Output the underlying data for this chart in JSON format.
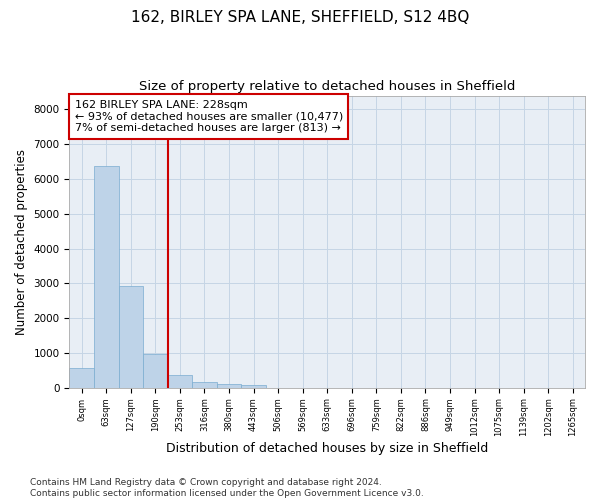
{
  "title1": "162, BIRLEY SPA LANE, SHEFFIELD, S12 4BQ",
  "title2": "Size of property relative to detached houses in Sheffield",
  "xlabel": "Distribution of detached houses by size in Sheffield",
  "ylabel": "Number of detached properties",
  "footnote": "Contains HM Land Registry data © Crown copyright and database right 2024.\nContains public sector information licensed under the Open Government Licence v3.0.",
  "bar_labels": [
    "0sqm",
    "63sqm",
    "127sqm",
    "190sqm",
    "253sqm",
    "316sqm",
    "380sqm",
    "443sqm",
    "506sqm",
    "569sqm",
    "633sqm",
    "696sqm",
    "759sqm",
    "822sqm",
    "886sqm",
    "949sqm",
    "1012sqm",
    "1075sqm",
    "1139sqm",
    "1202sqm",
    "1265sqm"
  ],
  "bar_heights": [
    560,
    6380,
    2920,
    980,
    370,
    170,
    110,
    80,
    0,
    0,
    0,
    0,
    0,
    0,
    0,
    0,
    0,
    0,
    0,
    0,
    0
  ],
  "bar_color": "#bed3e8",
  "bar_edge_color": "#7aacd0",
  "vline_x": 3.5,
  "vline_color": "#cc0000",
  "annotation_line1": "162 BIRLEY SPA LANE: 228sqm",
  "annotation_line2": "← 93% of detached houses are smaller (10,477)",
  "annotation_line3": "7% of semi-detached houses are larger (813) →",
  "annotation_box_color": "#cc0000",
  "ylim": [
    0,
    8400
  ],
  "yticks": [
    0,
    1000,
    2000,
    3000,
    4000,
    5000,
    6000,
    7000,
    8000
  ],
  "bg_color": "#ffffff",
  "axes_bg_color": "#e8eef5",
  "grid_color": "#c5d5e5",
  "title1_fontsize": 11,
  "title2_fontsize": 9.5,
  "xlabel_fontsize": 9,
  "ylabel_fontsize": 8.5,
  "footnote_fontsize": 6.5
}
